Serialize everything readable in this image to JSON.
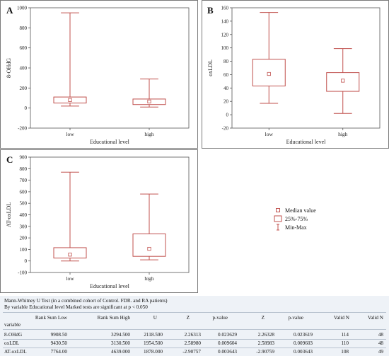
{
  "colors": {
    "box": "#c0504d",
    "axis": "#555555",
    "text": "#222222",
    "table_bg": "#eef2f7"
  },
  "chart_data": [
    {
      "type": "boxplot",
      "panel": "A",
      "ylabel": "8-OHdG",
      "xlabel": "Educational level",
      "ylim": [
        -200,
        1000
      ],
      "yticks": [
        -200,
        0,
        200,
        400,
        600,
        800,
        1000
      ],
      "grid": false,
      "categories": [
        "low",
        "high"
      ],
      "boxes": [
        {
          "category": "low",
          "min": 20,
          "q1": 50,
          "median": 80,
          "q3": 110,
          "max": 950
        },
        {
          "category": "high",
          "min": 10,
          "q1": 35,
          "median": 65,
          "q3": 90,
          "max": 290
        }
      ]
    },
    {
      "type": "boxplot",
      "panel": "B",
      "ylabel": "oxLDL",
      "xlabel": "Educational level",
      "ylim": [
        -20,
        160
      ],
      "yticks": [
        -20,
        0,
        20,
        40,
        60,
        80,
        100,
        120,
        140,
        160
      ],
      "grid": false,
      "categories": [
        "low",
        "high"
      ],
      "boxes": [
        {
          "category": "low",
          "min": 17,
          "q1": 43,
          "median": 61,
          "q3": 83,
          "max": 153
        },
        {
          "category": "high",
          "min": 2,
          "q1": 35,
          "median": 51,
          "q3": 63,
          "max": 99
        }
      ]
    },
    {
      "type": "boxplot",
      "panel": "C",
      "ylabel": "AT-oxLDL",
      "xlabel": "Educational level",
      "ylim": [
        -100,
        900
      ],
      "yticks": [
        -100,
        0,
        100,
        200,
        300,
        400,
        500,
        600,
        700,
        800,
        900
      ],
      "grid": false,
      "categories": [
        "low",
        "high"
      ],
      "boxes": [
        {
          "category": "low",
          "min": 0,
          "q1": 25,
          "median": 55,
          "q3": 115,
          "max": 770
        },
        {
          "category": "high",
          "min": 10,
          "q1": 40,
          "median": 105,
          "q3": 235,
          "max": 580
        }
      ]
    }
  ],
  "legend": {
    "items": [
      {
        "symbol": "median-marker",
        "label": "Median value"
      },
      {
        "symbol": "box-marker",
        "label": "25%-75%"
      },
      {
        "symbol": "whisker-marker",
        "label": "Min-Max"
      }
    ]
  },
  "stats_table": {
    "caption1": "Mann-Whitney U Test (in a combined cohort of Control. FDR. and RA patients)",
    "caption2": "By variable Educational level Marked tests are significant at p < 0.050",
    "headers": [
      "Rank Sum Low",
      "Rank Sum High",
      "U",
      "Z",
      "p-value",
      "Z",
      "p-value",
      "Valid N",
      "Valid N"
    ],
    "row_header": "variable",
    "rows": [
      {
        "variable": "8-OHdG",
        "cells": [
          "9908.50",
          "3294.500",
          "2118.500",
          "2.26313",
          "0.023629",
          "2.26328",
          "0.023619",
          "114",
          "48"
        ]
      },
      {
        "variable": "oxLDL",
        "cells": [
          "9430.50",
          "3130.500",
          "1954.500",
          "2.58980",
          "0.009604",
          "2.58983",
          "0.009603",
          "110",
          "48"
        ]
      },
      {
        "variable": "AT-oxLDL",
        "cells": [
          "7764.00",
          "4639.000",
          "1878.000",
          "-2.90757",
          "0.003643",
          "-2.90759",
          "0.003643",
          "108",
          "49"
        ]
      }
    ]
  }
}
